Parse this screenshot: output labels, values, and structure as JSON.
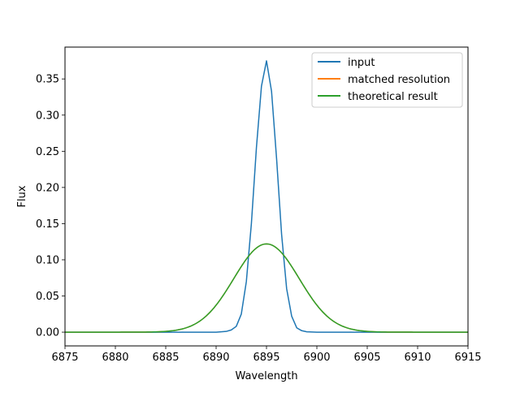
{
  "chart_data": {
    "type": "line",
    "title": "",
    "xlabel": "Wavelength",
    "ylabel": "Flux",
    "xlim": [
      6875,
      6915
    ],
    "ylim": [
      -0.019,
      0.394
    ],
    "xticks": [
      6875,
      6880,
      6885,
      6890,
      6895,
      6900,
      6905,
      6910,
      6915
    ],
    "yticks": [
      0.0,
      0.05,
      0.1,
      0.15,
      0.2,
      0.25,
      0.3,
      0.35
    ],
    "xtick_labels": [
      "6875",
      "6880",
      "6885",
      "6890",
      "6895",
      "6900",
      "6905",
      "6910",
      "6915"
    ],
    "ytick_labels": [
      "0.00",
      "0.05",
      "0.10",
      "0.15",
      "0.20",
      "0.25",
      "0.30",
      "0.35"
    ],
    "grid": false,
    "legend_position": "top-right",
    "series": [
      {
        "name": "input",
        "color": "#1f77b4",
        "x": [
          6875,
          6880,
          6885,
          6888,
          6890,
          6891,
          6891.5,
          6892,
          6892.5,
          6893,
          6893.5,
          6894,
          6894.5,
          6895,
          6895.5,
          6896,
          6896.5,
          6897,
          6897.5,
          6898,
          6898.5,
          6899,
          6900,
          6905,
          6915
        ],
        "y": [
          0,
          0,
          0,
          0,
          0.0,
          0.001,
          0.003,
          0.008,
          0.025,
          0.07,
          0.15,
          0.255,
          0.34,
          0.375,
          0.333,
          0.24,
          0.135,
          0.06,
          0.022,
          0.006,
          0.002,
          0.0005,
          0,
          0,
          0
        ]
      },
      {
        "name": "matched resolution",
        "color": "#ff7f0e",
        "gaussian": {
          "amplitude": 0.122,
          "center": 6895,
          "sigma": 3.25
        },
        "x_range": [
          6875,
          6915
        ]
      },
      {
        "name": "theoretical result",
        "color": "#2ca02c",
        "gaussian": {
          "amplitude": 0.122,
          "center": 6895,
          "sigma": 3.25
        },
        "x_range": [
          6875,
          6915
        ]
      }
    ]
  }
}
